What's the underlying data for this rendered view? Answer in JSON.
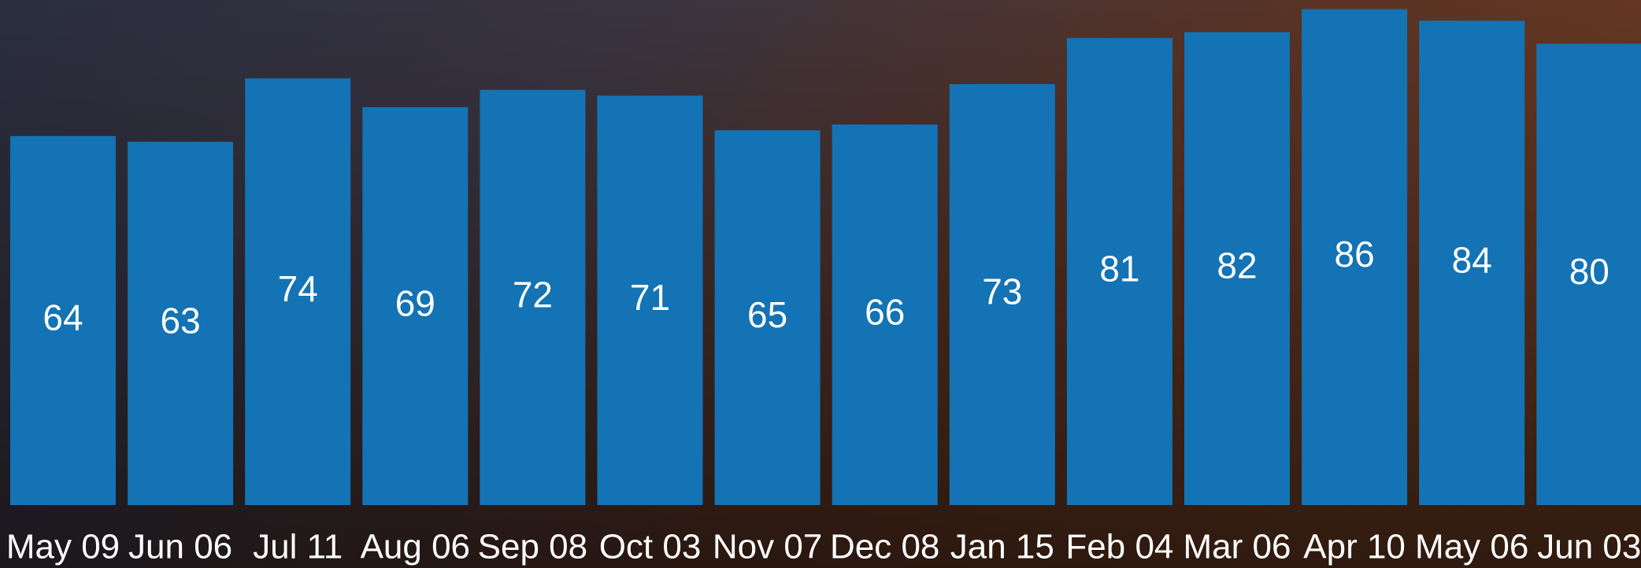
{
  "chart_data": {
    "type": "bar",
    "categories": [
      "May 09",
      "Jun 06",
      "Jul 11",
      "Aug 06",
      "Sep 08",
      "Oct 03",
      "Nov 07",
      "Dec 08",
      "Jan 15",
      "Feb 04",
      "Mar 06",
      "Apr 10",
      "May 06",
      "Jun 03"
    ],
    "values": [
      64,
      63,
      74,
      69,
      72,
      71,
      65,
      66,
      73,
      81,
      82,
      86,
      84,
      80
    ],
    "color": "#1373b4"
  }
}
